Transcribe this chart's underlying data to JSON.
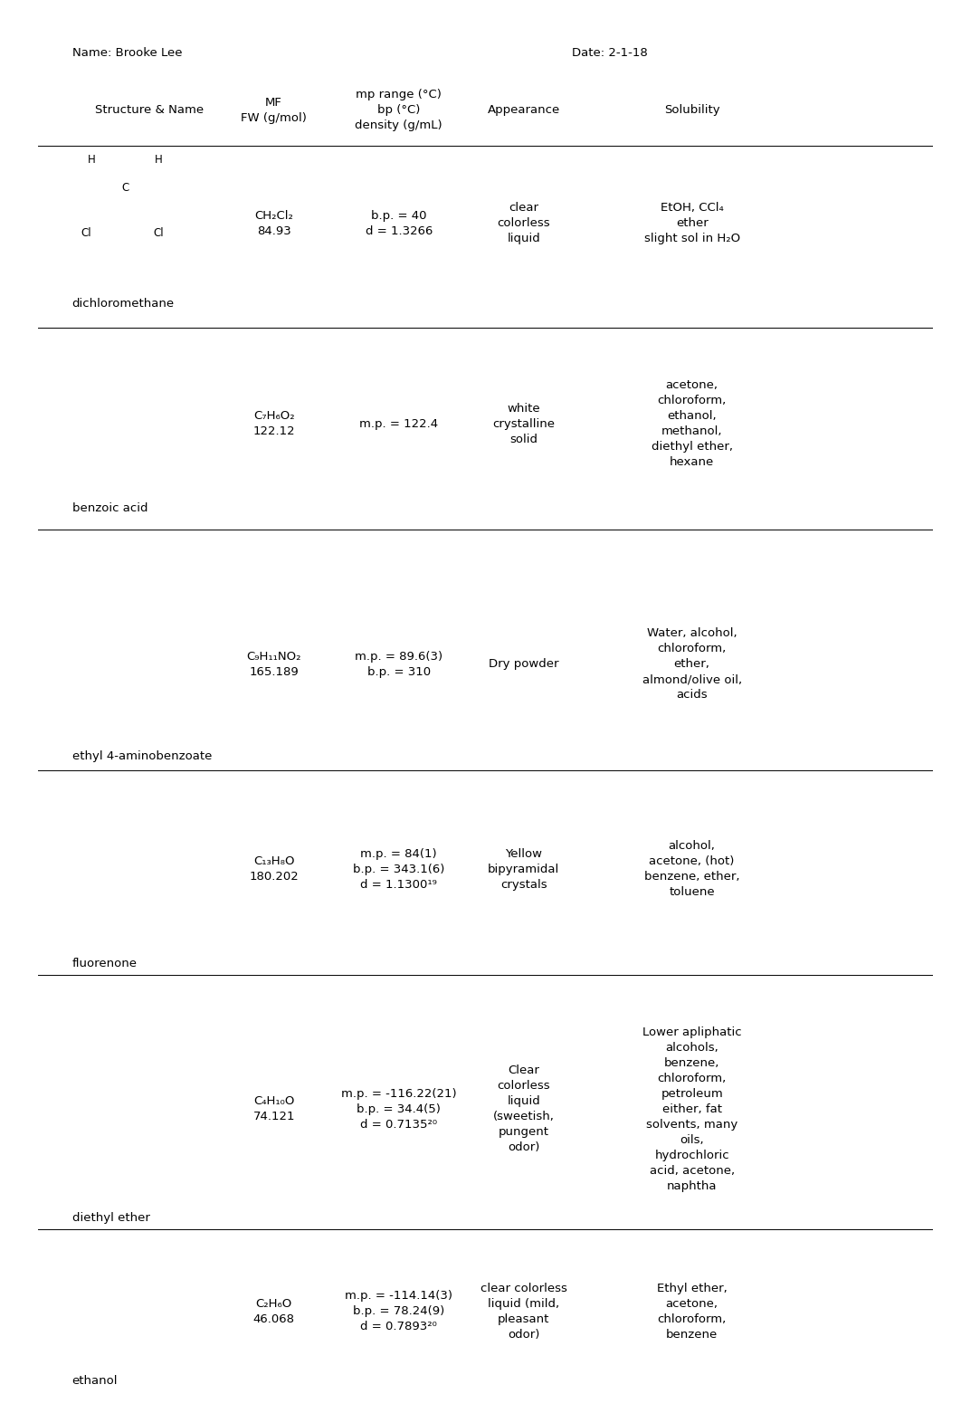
{
  "title_left": "Name: Brooke Lee",
  "title_right": "Date: 2-1-18",
  "bg_color": "#ffffff",
  "text_color": "#000000",
  "font_size": 9.5,
  "c1x": 0.155,
  "c2x": 0.285,
  "c3x": 0.415,
  "c4x": 0.545,
  "c5x": 0.72,
  "rows": [
    {
      "name": "dichloromethane",
      "mf": "CH₂Cl₂",
      "fw": "84.93",
      "mp_bp_d": "b.p. = 40\nd = 1.3266",
      "appearance": "clear\ncolorless\nliquid",
      "solubility": "EtOH, CCl₄\nether\nslight sol in H₂O",
      "has_structure": true
    },
    {
      "name": "benzoic acid",
      "mf": "C₇H₆O₂",
      "fw": "122.12",
      "mp_bp_d": "m.p. = 122.4",
      "appearance": "white\ncrystalline\nsolid",
      "solubility": "acetone,\nchloroform,\nethanol,\nmethanol,\ndiethyl ether,\nhexane",
      "has_structure": false
    },
    {
      "name": "ethyl 4-aminobenzoate",
      "mf": "C₉H₁₁NO₂",
      "fw": "165.189",
      "mp_bp_d": "m.p. = 89.6(3)\nb.p. = 310",
      "appearance": "Dry powder",
      "solubility": "Water, alcohol,\nchloroform,\nether,\nalmond/olive oil,\nacids",
      "has_structure": false
    },
    {
      "name": "fluorenone",
      "mf": "C₁₃H₈O",
      "fw": "180.202",
      "mp_bp_d": "m.p. = 84(1)\nb.p. = 343.1(6)\nd = 1.1300¹⁹",
      "appearance": "Yellow\nbipyramidal\ncrystals",
      "solubility": "alcohol,\nacetone, (hot)\nbenzene, ether,\ntoluene",
      "has_structure": false
    },
    {
      "name": "diethyl ether",
      "mf": "C₄H₁₀O",
      "fw": "74.121",
      "mp_bp_d": "m.p. = -116.22(21)\nb.p. = 34.4(5)\nd = 0.7135²⁰",
      "appearance": "Clear\ncolorless\nliquid\n(sweetish,\npungent\nodor)",
      "solubility": "Lower apliphatic\nalcohols,\nbenzene,\nchloroform,\npetroleum\neither, fat\nsolvents, many\noils,\nhydrochloric\nacid, acetone,\nnaphtha",
      "has_structure": false
    },
    {
      "name": "ethanol",
      "mf": "C₂H₆O",
      "fw": "46.068",
      "mp_bp_d": "m.p. = -114.14(3)\nb.p. = 78.24(9)\nd = 0.7893²⁰",
      "appearance": "clear colorless\nliquid (mild,\npleasant\nodor)",
      "solubility": "Ethyl ether,\nacetone,\nchloroform,\nbenzene",
      "has_structure": false
    }
  ]
}
